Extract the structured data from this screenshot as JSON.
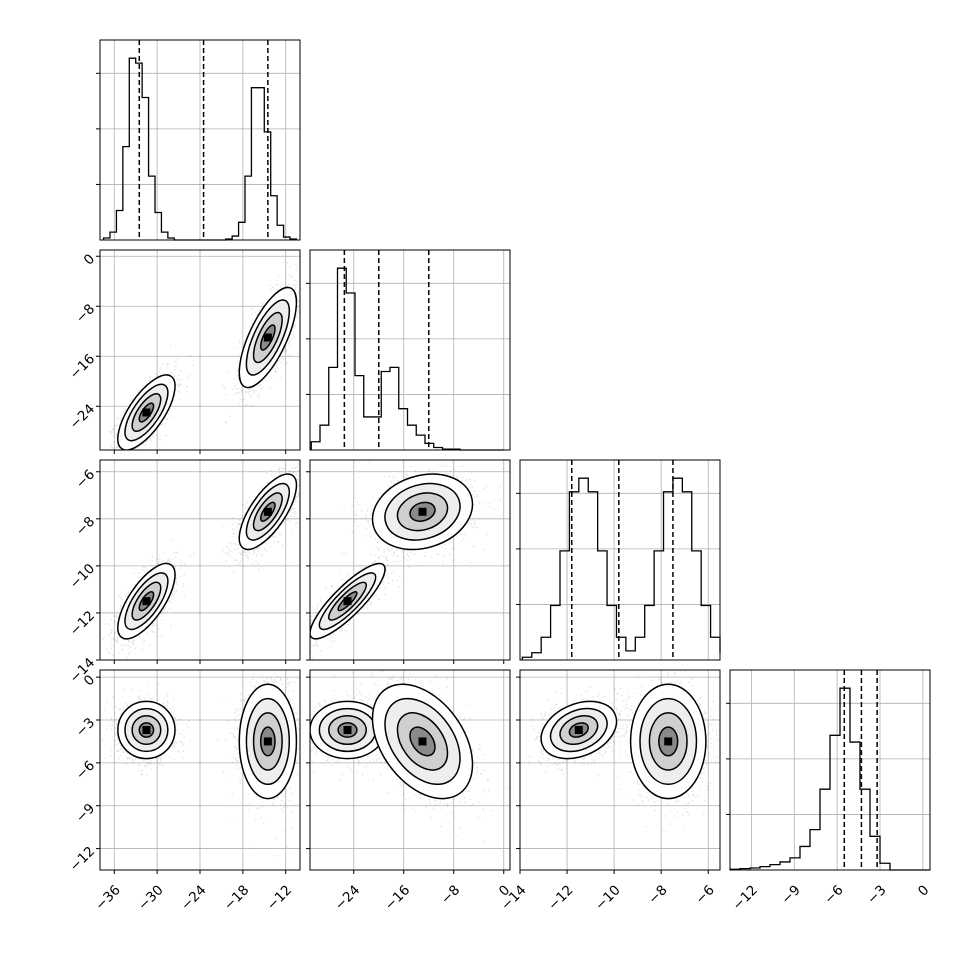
{
  "chart_data": {
    "type": "corner",
    "variables": [
      {
        "range": [
          -38.0,
          -10.0
        ],
        "ticks": [
          -36,
          -30,
          -24,
          -18,
          -12
        ],
        "tick_labels": [
          "−36",
          "−30",
          "−24",
          "−18",
          "−12"
        ],
        "quantiles": [
          -32.5,
          -23.5,
          -14.5
        ]
      },
      {
        "range": [
          -31.0,
          1.0
        ],
        "ticks": [
          -24,
          -16,
          -8,
          0
        ],
        "tick_labels": [
          "−24",
          "−16",
          "−8",
          "0"
        ],
        "quantiles": [
          -25.5,
          -20.0,
          -12.0
        ]
      },
      {
        "range": [
          -14.0,
          -5.5
        ],
        "ticks": [
          -14,
          -12,
          -10,
          -8,
          -6
        ],
        "tick_labels": [
          "−14",
          "−12",
          "−10",
          "−8",
          "−6"
        ],
        "quantiles": [
          -11.8,
          -9.8,
          -7.5
        ]
      },
      {
        "range": [
          -13.5,
          0.5
        ],
        "ticks": [
          -12,
          -9,
          -6,
          -3,
          0
        ],
        "tick_labels": [
          "−12",
          "−9",
          "−6",
          "−3",
          "0"
        ],
        "quantiles": [
          -5.5,
          -4.3,
          -3.2
        ]
      }
    ],
    "row_tick_labels": {
      "1": {
        "ticks": [
          0,
          -8,
          -16,
          -24
        ],
        "tick_labels": [
          "0",
          "−8",
          "−16",
          "−24"
        ]
      },
      "2": {
        "ticks": [
          -6,
          -8,
          -10,
          -12,
          -14
        ],
        "tick_labels": [
          "−6",
          "−8",
          "−10",
          "−12",
          "−14"
        ]
      },
      "3": {
        "ticks": [
          0,
          -3,
          -6,
          -9,
          -12
        ],
        "tick_labels": [
          "0",
          "−3",
          "−6",
          "−9",
          "−12"
        ]
      }
    },
    "histograms": [
      {
        "variable": 0,
        "bin_edges": [
          -37.5,
          -36.6,
          -35.7,
          -34.8,
          -33.9,
          -33.0,
          -32.1,
          -31.2,
          -30.3,
          -29.4,
          -28.5,
          -27.6,
          -26.7,
          -25.8,
          -24.9,
          -24.0,
          -23.1,
          -22.2,
          -21.3,
          -20.4,
          -19.5,
          -18.6,
          -17.7,
          -16.8,
          -15.9,
          -15.0,
          -14.1,
          -13.2,
          -12.3,
          -11.4,
          -10.5
        ],
        "counts": [
          2,
          8,
          30,
          95,
          185,
          180,
          145,
          65,
          28,
          8,
          2,
          0,
          0,
          0,
          0,
          0,
          0,
          0,
          0,
          1,
          4,
          18,
          65,
          155,
          155,
          110,
          45,
          15,
          3,
          1
        ]
      },
      {
        "variable": 1,
        "bin_edges": [
          -30.8,
          -29.4,
          -28.0,
          -26.6,
          -25.2,
          -23.8,
          -22.4,
          -21.0,
          -19.6,
          -18.2,
          -16.8,
          -15.4,
          -14.0,
          -12.6,
          -11.2,
          -9.8,
          -8.4,
          -7.0,
          -5.6,
          -4.2,
          -2.8,
          -1.4,
          0.0
        ],
        "counts": [
          10,
          30,
          100,
          220,
          190,
          90,
          40,
          40,
          95,
          100,
          50,
          30,
          18,
          8,
          3,
          1,
          1,
          0,
          0,
          0,
          0,
          0
        ]
      },
      {
        "variable": 2,
        "bin_edges": [
          -13.9,
          -13.5,
          -13.1,
          -12.7,
          -12.3,
          -11.9,
          -11.5,
          -11.1,
          -10.7,
          -10.3,
          -9.9,
          -9.5,
          -9.1,
          -8.7,
          -8.3,
          -7.9,
          -7.5,
          -7.1,
          -6.7,
          -6.3,
          -5.9,
          -5.5
        ],
        "counts": [
          3,
          8,
          25,
          60,
          120,
          185,
          200,
          185,
          120,
          60,
          25,
          10,
          25,
          60,
          120,
          185,
          200,
          185,
          120,
          60,
          25,
          8
        ]
      },
      {
        "variable": 3,
        "bin_edges": [
          -13.5,
          -12.8,
          -12.1,
          -11.4,
          -10.7,
          -10.0,
          -9.3,
          -8.6,
          -7.9,
          -7.2,
          -6.5,
          -5.8,
          -5.1,
          -4.4,
          -3.7,
          -3.0,
          -2.3,
          -1.6,
          -0.9,
          -0.2,
          0.5
        ],
        "counts": [
          1,
          2,
          3,
          5,
          8,
          12,
          18,
          35,
          60,
          120,
          200,
          270,
          190,
          120,
          50,
          10,
          0,
          0,
          0,
          0
        ]
      }
    ],
    "pairs": [
      {
        "x_variable": 0,
        "y_variable": 1,
        "modes": [
          {
            "x": -31.5,
            "y": -25.0,
            "sx": 2.0,
            "sy": 3.0,
            "rho": 0.7
          },
          {
            "x": -14.5,
            "y": -13.0,
            "sx": 2.0,
            "sy": 4.0,
            "rho": 0.7
          }
        ]
      },
      {
        "x_variable": 0,
        "y_variable": 2,
        "modes": [
          {
            "x": -31.5,
            "y": -11.5,
            "sx": 2.0,
            "sy": 0.8,
            "rho": 0.7
          },
          {
            "x": -14.5,
            "y": -7.7,
            "sx": 2.0,
            "sy": 0.8,
            "rho": 0.7
          }
        ]
      },
      {
        "x_variable": 1,
        "y_variable": 2,
        "modes": [
          {
            "x": -25.0,
            "y": -11.5,
            "sx": 3.0,
            "sy": 0.8,
            "rho": 0.85
          },
          {
            "x": -13.0,
            "y": -7.7,
            "sx": 4.0,
            "sy": 0.8,
            "rho": 0.2
          }
        ]
      },
      {
        "x_variable": 0,
        "y_variable": 3,
        "modes": [
          {
            "x": -31.5,
            "y": -3.7,
            "sx": 2.0,
            "sy": 1.0,
            "rho": 0.0
          },
          {
            "x": -14.5,
            "y": -4.5,
            "sx": 2.0,
            "sy": 2.0,
            "rho": 0.0
          }
        ]
      },
      {
        "x_variable": 1,
        "y_variable": 3,
        "modes": [
          {
            "x": -25.0,
            "y": -3.7,
            "sx": 3.0,
            "sy": 1.0,
            "rho": 0.0
          },
          {
            "x": -13.0,
            "y": -4.5,
            "sx": 4.0,
            "sy": 2.0,
            "rho": -0.4
          }
        ]
      },
      {
        "x_variable": 2,
        "y_variable": 3,
        "modes": [
          {
            "x": -11.5,
            "y": -3.7,
            "sx": 0.8,
            "sy": 1.0,
            "rho": 0.3
          },
          {
            "x": -7.7,
            "y": -4.5,
            "sx": 0.8,
            "sy": 2.0,
            "rho": 0.0
          }
        ]
      }
    ],
    "contour_levels_sigma": [
      0.5,
      1.0,
      1.5,
      2.0
    ],
    "grid": true,
    "title": "",
    "xlabel": "",
    "ylabel": ""
  },
  "colors": {
    "scatter": "#2b2b2b",
    "contour": "#000000",
    "grid": "#b0b0b0",
    "axes": "#000000"
  }
}
